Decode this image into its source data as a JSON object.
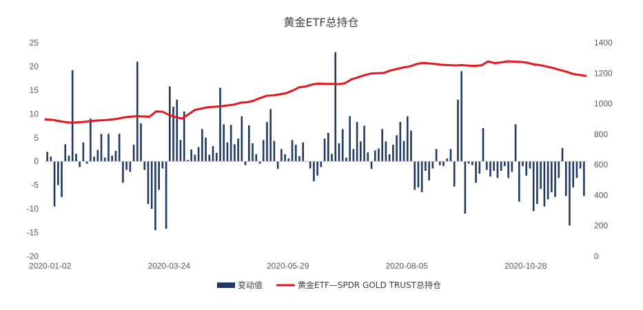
{
  "chart_data": {
    "type": "bar+line",
    "title": "黄金ETF总持仓",
    "legend_position": "bottom",
    "grid": false,
    "x_tick_labels": [
      "2020-01-02",
      "2020-03-24",
      "2020-05-29",
      "2020-08-05",
      "2020-10-28"
    ],
    "y_left": {
      "min": -20,
      "max": 25,
      "ticks": [
        25,
        20,
        15,
        10,
        5,
        0,
        -5,
        -10,
        -15,
        -20
      ]
    },
    "y_right": {
      "min": 0,
      "max": 1400,
      "ticks": [
        1400,
        1200,
        1000,
        800,
        600,
        400,
        200,
        0
      ]
    },
    "series": [
      {
        "name": "变动值",
        "type": "bar",
        "axis": "left",
        "color": "#1f3864",
        "changes": [
          2,
          1,
          -9.5,
          -5,
          -7.5,
          3.6,
          1.2,
          19.2,
          1.6,
          -1.2,
          4,
          -0.5,
          9,
          1,
          2.4,
          5.8,
          0.8,
          5.8,
          1.2,
          2.2,
          5.8,
          -4.5,
          -1.8,
          -2.2,
          3.5,
          21,
          8,
          -1.8,
          -9,
          -10,
          -14.5,
          -6,
          -1.5,
          -14.2,
          15.8,
          11.5,
          13,
          4.5,
          10.5,
          0.3,
          2.5,
          1.4,
          3,
          6.8,
          5,
          1.4,
          3.2,
          1.8,
          15.5,
          7.8,
          4,
          7.7,
          3.6,
          4.8,
          9.5,
          -0.8,
          7.6,
          3.8,
          1.5,
          -0.5,
          4.5,
          8.3,
          11,
          4.3,
          -1.6,
          2.6,
          1.5,
          0.6,
          4.5,
          3.5,
          1.1,
          4,
          0,
          -1.5,
          -4.2,
          -3,
          -1.2,
          4.8,
          6,
          1.6,
          23,
          3.8,
          6.8,
          0.8,
          9.5,
          2.6,
          8.3,
          4.2,
          7.5,
          1.9,
          -1.6,
          2.3,
          2.7,
          6.8,
          4.2,
          1.5,
          3.5,
          5.5,
          8.3,
          4.3,
          9.5,
          6.5,
          -6,
          -5.5,
          -6.5,
          -2,
          -4,
          -1.5,
          2.6,
          -0.8,
          -1,
          0.6,
          2.6,
          -5.3,
          13,
          19,
          -11,
          -0.5,
          -0.8,
          -4.5,
          -2.6,
          7,
          -1.8,
          -3.2,
          -2,
          -3.5,
          -2,
          -1,
          -3.5,
          -2.2,
          7.8,
          -8.5,
          -1,
          -3,
          -1.5,
          -10.5,
          -9,
          -5.8,
          -9.5,
          -8,
          -6.5,
          -7.5,
          -3.5,
          2.8,
          -7.3,
          -13.5,
          -5.5,
          -3.5,
          -1.5,
          -7.3
        ]
      },
      {
        "name": "黄金ETF—SPDR GOLD TRUST总持仓",
        "type": "line",
        "axis": "right",
        "color": "#e8141e",
        "holdings": [
          897,
          895,
          887,
          880,
          875,
          878,
          881,
          887,
          890,
          892,
          896,
          901,
          910,
          915,
          918,
          917,
          915,
          950,
          947,
          927,
          912,
          903,
          932,
          960,
          968,
          978,
          980,
          984,
          989,
          995,
          1007,
          1010,
          1020,
          1038,
          1052,
          1055,
          1062,
          1070,
          1087,
          1108,
          1113,
          1127,
          1132,
          1130,
          1130,
          1128,
          1134,
          1160,
          1173,
          1187,
          1198,
          1200,
          1202,
          1218,
          1228,
          1238,
          1245,
          1260,
          1268,
          1264,
          1260,
          1255,
          1253,
          1251,
          1253,
          1250,
          1248,
          1252,
          1278,
          1266,
          1271,
          1278,
          1276,
          1274,
          1269,
          1258,
          1253,
          1244,
          1234,
          1222,
          1210,
          1196,
          1189,
          1183
        ]
      }
    ]
  }
}
